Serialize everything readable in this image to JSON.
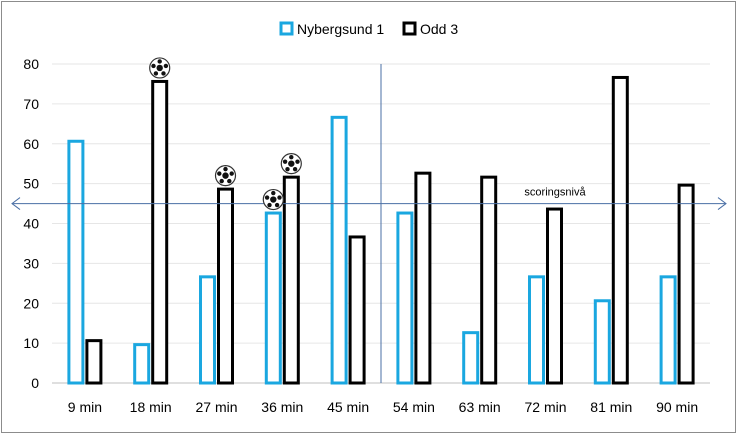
{
  "chart_data": {
    "type": "bar",
    "categories": [
      "9 min",
      "18 min",
      "27 min",
      "36 min",
      "45 min",
      "54 min",
      "63 min",
      "72 min",
      "81 min",
      "90 min"
    ],
    "series": [
      {
        "name": "Nybergsund 1",
        "color": "#1aa7e0",
        "values": [
          61,
          10,
          27,
          43,
          67,
          43,
          13,
          27,
          21,
          27
        ]
      },
      {
        "name": "Odd 3",
        "color": "#000000",
        "values": [
          11,
          76,
          49,
          52,
          37,
          53,
          52,
          44,
          77,
          50
        ]
      }
    ],
    "ylim": [
      0,
      80
    ],
    "yticks": [
      0,
      10,
      20,
      30,
      40,
      50,
      60,
      70,
      80
    ],
    "legend_position": "top",
    "reference_line": {
      "label": "scoringsnivå",
      "value": 45
    },
    "halftime_divider_after": "45 min",
    "ball_markers": [
      {
        "category": "18 min",
        "series": "Odd 3"
      },
      {
        "category": "27 min",
        "series": "Odd 3"
      },
      {
        "category": "36 min",
        "series": "Odd 3"
      },
      {
        "category": "36 min",
        "series": "Nybergsund 1"
      }
    ],
    "ball_icon": "football-icon"
  }
}
